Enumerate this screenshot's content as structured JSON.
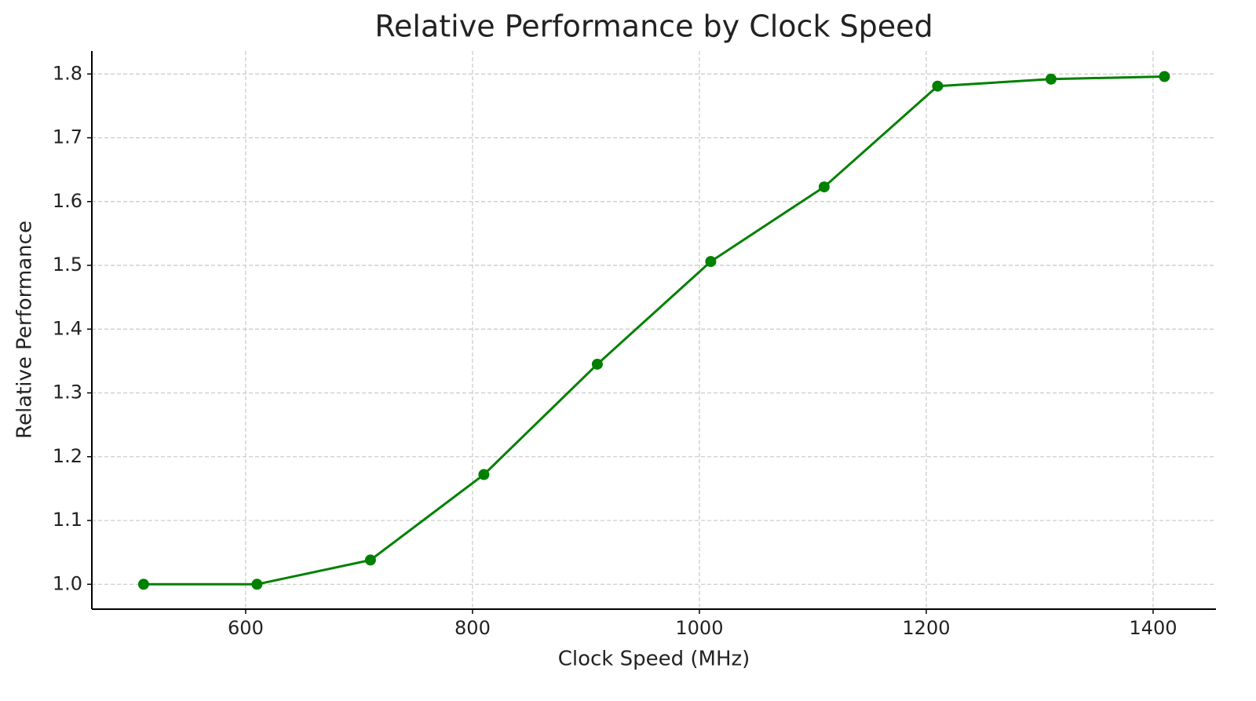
{
  "chart_data": {
    "type": "line",
    "title": "Relative Performance by Clock Speed",
    "x_label": "Clock Speed (MHz)",
    "y_label": "Relative Performance",
    "x": [
      510,
      610,
      710,
      810,
      910,
      1010,
      1110,
      1210,
      1310,
      1410
    ],
    "series": [
      {
        "color": "#008000",
        "values": [
          1.0,
          1.0,
          1.038,
          1.172,
          1.345,
          1.506,
          1.623,
          1.781,
          1.792,
          1.796
        ]
      }
    ],
    "xlim": [
      464.4,
      1455.4
    ],
    "ylim": [
      0.961,
      1.836
    ],
    "xticks": [
      600,
      800,
      1000,
      1200,
      1400
    ],
    "yticks": [
      {
        "value": 1,
        "label": "1.0"
      },
      1.1,
      1.2,
      1.3,
      1.4,
      1.5,
      1.6,
      1.7,
      1.8
    ],
    "grid": true
  }
}
